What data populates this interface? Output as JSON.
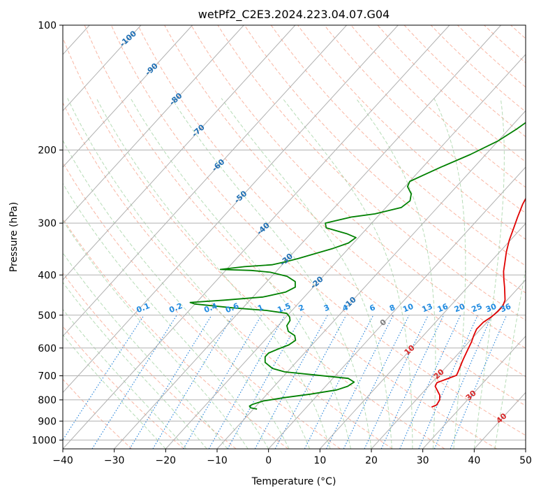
{
  "chart_data": {
    "type": "line",
    "title": "wetPf2_C2E3.2024.223.04.07.G04",
    "xlabel": "Temperature (°C)",
    "ylabel": "Pressure (hPa)",
    "xlim": [
      -40,
      50
    ],
    "ylim": [
      1050,
      100
    ],
    "y_scale": "log",
    "grid": true,
    "x_ticks": [
      "−40",
      "−30",
      "−20",
      "−10",
      "0",
      "10",
      "20",
      "30",
      "40",
      "50"
    ],
    "y_ticks": [
      "100",
      "200",
      "300",
      "400",
      "500",
      "600",
      "700",
      "800",
      "900",
      "1000"
    ],
    "series": [
      {
        "role": "temperature",
        "color": "#e00000",
        "points": [
          [
            24.3,
            833
          ],
          [
            24.9,
            823
          ],
          [
            24.6,
            800
          ],
          [
            23.8,
            780
          ],
          [
            22.5,
            760
          ],
          [
            21.3,
            742
          ],
          [
            21.0,
            727
          ],
          [
            22.3,
            712
          ],
          [
            23.5,
            698
          ],
          [
            23.2,
            685
          ],
          [
            22.8,
            670
          ],
          [
            22.0,
            640
          ],
          [
            21.5,
            620
          ],
          [
            21.0,
            600
          ],
          [
            20.5,
            580
          ],
          [
            19.8,
            560
          ],
          [
            19.2,
            540
          ],
          [
            19.3,
            520
          ],
          [
            19.9,
            505
          ],
          [
            20.2,
            490
          ],
          [
            20.2,
            475
          ],
          [
            19.6,
            460
          ],
          [
            18.5,
            445
          ],
          [
            17.2,
            428
          ],
          [
            15.7,
            410
          ],
          [
            14.2,
            392
          ],
          [
            12.8,
            372
          ],
          [
            11.3,
            352
          ],
          [
            9.8,
            330
          ],
          [
            8.6,
            310
          ],
          [
            7.3,
            290
          ],
          [
            6.0,
            270
          ],
          [
            5.0,
            250
          ],
          [
            4.0,
            230
          ],
          [
            3.3,
            210
          ],
          [
            2.7,
            190
          ],
          [
            2.3,
            170
          ],
          [
            2.2,
            155
          ],
          [
            1.7,
            142
          ],
          [
            1.2,
            130
          ],
          [
            1.2,
            120
          ],
          [
            1.5,
            112
          ],
          [
            2.3,
            105
          ],
          [
            3.3,
            100
          ]
        ]
      },
      {
        "role": "dewpoint",
        "color": "#008000",
        "points": [
          [
            -9.3,
            842
          ],
          [
            -10.8,
            836
          ],
          [
            -11.3,
            828
          ],
          [
            -11.0,
            820
          ],
          [
            -9.5,
            805
          ],
          [
            -6.0,
            790
          ],
          [
            -1.5,
            775
          ],
          [
            2.8,
            757
          ],
          [
            4.3,
            742
          ],
          [
            4.8,
            725
          ],
          [
            3.0,
            710
          ],
          [
            -5.0,
            695
          ],
          [
            -10.5,
            685
          ],
          [
            -13.5,
            672
          ],
          [
            -16.0,
            650
          ],
          [
            -17.0,
            630
          ],
          [
            -17.0,
            617
          ],
          [
            -16.0,
            605
          ],
          [
            -14.5,
            590
          ],
          [
            -14.0,
            575
          ],
          [
            -15.0,
            560
          ],
          [
            -17.0,
            547
          ],
          [
            -18.3,
            530
          ],
          [
            -18.6,
            515
          ],
          [
            -19.3,
            505
          ],
          [
            -20.5,
            495
          ],
          [
            -25.0,
            487
          ],
          [
            -32.0,
            480
          ],
          [
            -40.0,
            470
          ],
          [
            -41.2,
            466
          ],
          [
            -35.0,
            460
          ],
          [
            -28.0,
            452
          ],
          [
            -24.5,
            440
          ],
          [
            -23.5,
            428
          ],
          [
            -24.5,
            415
          ],
          [
            -27.0,
            403
          ],
          [
            -31.0,
            394
          ],
          [
            -35.0,
            390
          ],
          [
            -41.2,
            388
          ],
          [
            -37.0,
            382
          ],
          [
            -32.0,
            378
          ],
          [
            -30.0,
            372
          ],
          [
            -28.0,
            365
          ],
          [
            -25.5,
            355
          ],
          [
            -23.0,
            345
          ],
          [
            -21.0,
            335
          ],
          [
            -20.5,
            325
          ],
          [
            -23.0,
            318
          ],
          [
            -28.0,
            308
          ],
          [
            -29.0,
            300
          ],
          [
            -25.0,
            290
          ],
          [
            -21.0,
            285
          ],
          [
            -17.0,
            275
          ],
          [
            -16.5,
            265
          ],
          [
            -17.5,
            255
          ],
          [
            -19.5,
            245
          ],
          [
            -20.0,
            238
          ],
          [
            -18.5,
            230
          ],
          [
            -16.5,
            220
          ],
          [
            -13.0,
            205
          ],
          [
            -10.0,
            190
          ],
          [
            -8.5,
            178
          ],
          [
            -7.5,
            168
          ],
          [
            -6.0,
            155
          ],
          [
            -4.5,
            145
          ],
          [
            -3.3,
            135
          ],
          [
            -2.0,
            125
          ],
          [
            -1.3,
            115
          ],
          [
            -0.5,
            108
          ],
          [
            0.5,
            102
          ],
          [
            1.0,
            100
          ]
        ]
      }
    ],
    "isotherm_labels": [
      "-100",
      "-90",
      "-80",
      "-70",
      "-60",
      "-50",
      "-40",
      "-30",
      "-20",
      "-10",
      "0",
      "10",
      "20",
      "30",
      "40"
    ],
    "mixing_ratio_labels": [
      "0.1",
      "0.2",
      "0.4",
      "0.6",
      "1",
      "1.5",
      "2",
      "3",
      "4",
      "6",
      "8",
      "10",
      "13",
      "16",
      "20",
      "25",
      "30",
      "36"
    ]
  }
}
